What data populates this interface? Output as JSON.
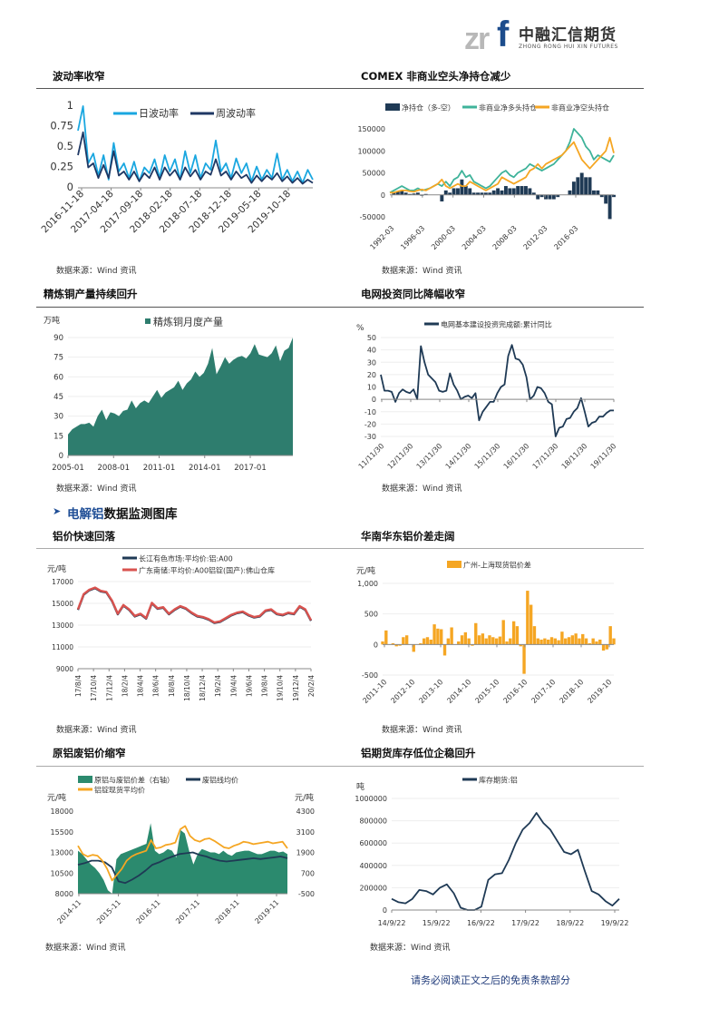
{
  "header": {
    "logo_latin": "zrf",
    "logo_cn": "中融汇信期货",
    "logo_en": "ZHONG RONG HUI XIN FUTURES"
  },
  "section": {
    "title_highlight": "电解铝",
    "title_rest": "数据监测图库",
    "icon": "bullet-arrow-icon"
  },
  "source_label": "数据来源：Wind 资讯",
  "footer": "请务必阅读正文之后的免责条款部分",
  "colors": {
    "navy": "#1f3a55",
    "light_blue": "#1aa7e0",
    "teal": "#2e7d6e",
    "green": "#3fb39a",
    "orange": "#f5a623",
    "red": "#d9534f"
  },
  "chart_data": [
    {
      "id": "c1",
      "title": "波动率收窄",
      "type": "line",
      "ylim": [
        0,
        1
      ],
      "yticks": [
        "0",
        "0.25",
        "0.5",
        "0.75",
        "1"
      ],
      "xticks": [
        "2016-11-18",
        "2017-04-18",
        "2017-09-18",
        "2018-02-18",
        "2018-07-18",
        "2018-12-18",
        "2019-05-18",
        "2019-10-18"
      ],
      "series": [
        {
          "name": "日波动率",
          "color": "#1aa7e0",
          "kind": "line",
          "values": [
            0.7,
            1.0,
            0.3,
            0.42,
            0.15,
            0.4,
            0.1,
            0.55,
            0.2,
            0.3,
            0.12,
            0.32,
            0.08,
            0.25,
            0.18,
            0.35,
            0.12,
            0.4,
            0.2,
            0.35,
            0.1,
            0.45,
            0.18,
            0.4,
            0.12,
            0.3,
            0.22,
            0.58,
            0.2,
            0.3,
            0.12,
            0.36,
            0.18,
            0.3,
            0.08,
            0.26,
            0.1,
            0.22,
            0.12,
            0.42,
            0.1,
            0.22,
            0.08,
            0.2,
            0.06,
            0.22,
            0.1
          ]
        },
        {
          "name": "周波动率",
          "color": "#1f3864",
          "kind": "line",
          "values": [
            0.4,
            0.68,
            0.25,
            0.3,
            0.12,
            0.28,
            0.12,
            0.45,
            0.15,
            0.2,
            0.1,
            0.2,
            0.08,
            0.18,
            0.12,
            0.25,
            0.1,
            0.25,
            0.15,
            0.22,
            0.1,
            0.25,
            0.14,
            0.22,
            0.1,
            0.2,
            0.16,
            0.35,
            0.15,
            0.2,
            0.1,
            0.2,
            0.12,
            0.16,
            0.06,
            0.15,
            0.08,
            0.15,
            0.1,
            0.18,
            0.08,
            0.14,
            0.06,
            0.12,
            0.05,
            0.1,
            0.06
          ]
        }
      ]
    },
    {
      "id": "c2",
      "title": "COMEX 非商业空头净持仓减少",
      "type": "line",
      "ylim": [
        -50000,
        150000
      ],
      "yticks": [
        "-50000",
        "0",
        "50000",
        "100000",
        "150000"
      ],
      "xticks": [
        "1992-03",
        "1996-03",
        "2000-03",
        "2004-03",
        "2008-03",
        "2012-03",
        "2016-03"
      ],
      "series": [
        {
          "name": "净持仓（多-空）",
          "color": "#1f3a55",
          "kind": "bar",
          "values": [
            0,
            5000,
            7000,
            10000,
            5000,
            2000,
            3000,
            5000,
            -2000,
            2000,
            0,
            0,
            0,
            -15000,
            10000,
            5000,
            15000,
            15000,
            35000,
            20000,
            15000,
            5000,
            5000,
            5000,
            5000,
            5000,
            10000,
            15000,
            10000,
            20000,
            15000,
            15000,
            20000,
            20000,
            20000,
            15000,
            5000,
            -10000,
            -5000,
            -10000,
            -10000,
            -10000,
            -5000,
            0,
            0,
            10000,
            30000,
            40000,
            50000,
            40000,
            40000,
            10000,
            10000,
            -5000,
            -20000,
            -55000,
            -5000
          ]
        },
        {
          "name": "非商业净多头持仓",
          "color": "#3fb39a",
          "kind": "line",
          "values": [
            5000,
            10000,
            15000,
            20000,
            15000,
            10000,
            10000,
            15000,
            10000,
            12000,
            15000,
            20000,
            25000,
            20000,
            30000,
            20000,
            35000,
            40000,
            55000,
            40000,
            45000,
            30000,
            25000,
            20000,
            15000,
            20000,
            30000,
            40000,
            50000,
            55000,
            45000,
            40000,
            50000,
            55000,
            60000,
            70000,
            65000,
            60000,
            55000,
            60000,
            65000,
            70000,
            80000,
            90000,
            100000,
            120000,
            150000,
            140000,
            130000,
            110000,
            100000,
            80000,
            90000,
            85000,
            80000,
            75000,
            90000
          ]
        },
        {
          "name": "非商业净空头持仓",
          "color": "#f5a623",
          "kind": "line",
          "values": [
            5000,
            5000,
            8000,
            10000,
            10000,
            8000,
            7000,
            10000,
            12000,
            10000,
            15000,
            20000,
            25000,
            35000,
            20000,
            15000,
            20000,
            25000,
            20000,
            20000,
            30000,
            25000,
            20000,
            15000,
            10000,
            15000,
            20000,
            25000,
            40000,
            35000,
            30000,
            25000,
            30000,
            35000,
            40000,
            55000,
            60000,
            70000,
            60000,
            70000,
            75000,
            80000,
            85000,
            90000,
            100000,
            110000,
            120000,
            100000,
            80000,
            70000,
            60000,
            70000,
            80000,
            90000,
            100000,
            130000,
            95000
          ]
        }
      ]
    },
    {
      "id": "c3",
      "title": "精炼铜产量持续回升",
      "type": "area",
      "unit": "万吨",
      "ylim": [
        0,
        90
      ],
      "yticks": [
        "0",
        "15",
        "30",
        "45",
        "60",
        "75",
        "90"
      ],
      "xticks": [
        "2005-01",
        "2008-01",
        "2011-01",
        "2014-01",
        "2017-01"
      ],
      "series": [
        {
          "name": "精炼铜月度产量",
          "color": "#2e7d6e",
          "kind": "area",
          "values": [
            16,
            20,
            22,
            24,
            24,
            25,
            22,
            30,
            35,
            27,
            33,
            32,
            30,
            34,
            35,
            42,
            36,
            40,
            42,
            40,
            45,
            50,
            44,
            48,
            50,
            52,
            57,
            50,
            55,
            58,
            64,
            60,
            63,
            70,
            82,
            62,
            68,
            75,
            70,
            73,
            75,
            76,
            74,
            78,
            85,
            77,
            76,
            75,
            78,
            84,
            72,
            80,
            82,
            90
          ]
        }
      ]
    },
    {
      "id": "c4",
      "title": "电网投资同比降幅收窄",
      "type": "line",
      "unit": "%",
      "ylim": [
        -30,
        50
      ],
      "yticks": [
        "-30",
        "-20",
        "-10",
        "0",
        "10",
        "20",
        "30",
        "40",
        "50"
      ],
      "xticks": [
        "11/11/30",
        "12/11/30",
        "13/11/30",
        "14/11/30",
        "15/11/30",
        "16/11/30",
        "17/11/30",
        "18/11/30",
        "19/11/30"
      ],
      "series": [
        {
          "name": "电网基本建设投资完成额:累计同比",
          "color": "#1f3a55",
          "kind": "line",
          "values": [
            20,
            7,
            7,
            6,
            -2,
            5,
            8,
            6,
            5,
            8,
            0,
            43,
            30,
            20,
            17,
            14,
            7,
            6,
            7,
            21,
            12,
            7,
            0,
            2,
            3,
            1,
            5,
            -17,
            -10,
            -6,
            -2,
            -2,
            5,
            10,
            12,
            35,
            44,
            33,
            32,
            28,
            18,
            0,
            3,
            10,
            9,
            5,
            -2,
            -4,
            -30,
            -23,
            -22,
            -16,
            -15,
            -10,
            -7,
            1,
            -10,
            -22,
            -19,
            -18,
            -14,
            -14,
            -11,
            -9,
            -9
          ]
        }
      ]
    },
    {
      "id": "c5",
      "title": "铝价快速回落",
      "type": "line",
      "unit": "元/吨",
      "ylim": [
        9000,
        17000
      ],
      "yticks": [
        "9000",
        "11000",
        "13000",
        "15000",
        "17000"
      ],
      "xticks": [
        "17/8/4",
        "17/10/4",
        "17/12/4",
        "18/2/4",
        "18/4/4",
        "18/6/4",
        "18/8/4",
        "18/10/4",
        "18/12/4",
        "19/2/4",
        "19/4/4",
        "19/6/4",
        "19/8/4",
        "19/10/4",
        "19/12/4",
        "20/2/4"
      ],
      "series": [
        {
          "name": "长江有色市场:平均价:铝:A00",
          "color": "#1f3a55",
          "kind": "line",
          "values": [
            14400,
            15800,
            16200,
            16400,
            16100,
            16000,
            15200,
            14000,
            14800,
            14400,
            13800,
            14000,
            13600,
            15000,
            14500,
            14600,
            14000,
            14400,
            14700,
            14500,
            14100,
            13800,
            13700,
            13500,
            13200,
            13300,
            13600,
            13900,
            14100,
            14200,
            13900,
            13700,
            13800,
            14300,
            14400,
            14000,
            13900,
            14100,
            14000,
            14700,
            14400,
            13400
          ]
        },
        {
          "name": "广东南储:平均价:A00铝锭(国产):佛山仓库",
          "color": "#d9534f",
          "kind": "line",
          "values": [
            14450,
            15850,
            16250,
            16450,
            16150,
            16050,
            15250,
            14050,
            14850,
            14450,
            13850,
            14050,
            13650,
            15050,
            14550,
            14650,
            14050,
            14450,
            14750,
            14550,
            14150,
            13850,
            13750,
            13550,
            13250,
            13350,
            13650,
            13950,
            14150,
            14250,
            13950,
            13750,
            13850,
            14350,
            14450,
            14050,
            13950,
            14150,
            14050,
            14750,
            14450,
            13450
          ]
        }
      ]
    },
    {
      "id": "c6",
      "title": "华南华东铝价差走阔",
      "type": "bar",
      "unit": "元/吨",
      "ylim": [
        -500,
        1000
      ],
      "yticks": [
        "-500",
        "0",
        "500",
        "1,000"
      ],
      "xticks": [
        "2011-10",
        "2012-10",
        "2013-10",
        "2014-10",
        "2015-10",
        "2016-10",
        "2017-10",
        "2018-10",
        "2019-10"
      ],
      "series": [
        {
          "name": "广州-上海现货铝价差",
          "color": "#f5a623",
          "kind": "bar",
          "values": [
            50,
            230,
            0,
            20,
            -30,
            -20,
            120,
            150,
            0,
            -120,
            0,
            20,
            100,
            120,
            80,
            330,
            260,
            250,
            -180,
            100,
            280,
            0,
            50,
            150,
            200,
            100,
            -20,
            350,
            150,
            180,
            100,
            150,
            120,
            100,
            130,
            400,
            50,
            100,
            380,
            300,
            -30,
            -480,
            880,
            650,
            300,
            100,
            80,
            100,
            80,
            120,
            100,
            70,
            210,
            100,
            120,
            150,
            180,
            100,
            170,
            100,
            20,
            100,
            50,
            80,
            -100,
            -80,
            300,
            100
          ]
        }
      ]
    },
    {
      "id": "c7",
      "title": "原铝废铝价缩窄",
      "type": "line",
      "unit": "元/吨",
      "unit_right": "元/吨",
      "ylim": [
        8000,
        18000
      ],
      "yticks": [
        "8000",
        "10500",
        "13000",
        "15500",
        "18000"
      ],
      "ylim_right": [
        -500,
        4300
      ],
      "yticks_right": [
        "-500",
        "700",
        "1900",
        "3100",
        "4300"
      ],
      "xticks": [
        "2014-11",
        "2015-11",
        "2016-11",
        "2017-11",
        "2018-11",
        "2019-11"
      ],
      "series": [
        {
          "name": "原铝与废铝价差（右轴）",
          "color": "#2b8a6e",
          "kind": "area",
          "axis": "right",
          "values": [
            2000,
            1800,
            1500,
            1200,
            1000,
            700,
            300,
            -300,
            -500,
            1500,
            1800,
            1900,
            2000,
            2100,
            2200,
            2300,
            2400,
            3600,
            2000,
            1800,
            1900,
            2100,
            2000,
            1600,
            3200,
            3000,
            2000,
            1200,
            1800,
            2100,
            2000,
            1900,
            1900,
            1800,
            2000,
            1800,
            1700,
            1900,
            1950,
            2000,
            2000,
            1900,
            1800,
            1800,
            1900,
            2000,
            2000,
            1900,
            1950,
            1800
          ]
        },
        {
          "name": "废铝线均价",
          "color": "#1f3a55",
          "kind": "line",
          "values": [
            11500,
            11700,
            12000,
            12000,
            11800,
            11200,
            9500,
            9300,
            9700,
            10200,
            10800,
            11500,
            11800,
            12200,
            12500,
            12800,
            12900,
            13000,
            12700,
            12500,
            12200,
            12000,
            11900,
            12000,
            12100,
            12200,
            12300,
            12200,
            12300,
            12400,
            12500,
            12300
          ]
        },
        {
          "name": "铝锭现货平均价",
          "color": "#f5a623",
          "kind": "line",
          "values": [
            13800,
            12800,
            12500,
            12700,
            12600,
            12000,
            11000,
            9600,
            10300,
            11000,
            12000,
            12500,
            12800,
            13000,
            13200,
            14500,
            13500,
            13600,
            13900,
            14000,
            14200,
            15800,
            16200,
            15000,
            14500,
            14300,
            14600,
            14700,
            14400,
            14000,
            13600,
            13500,
            13800,
            14000,
            14300,
            14200,
            14000,
            14100,
            14200,
            14300,
            14100,
            14200,
            14300,
            13500
          ]
        }
      ]
    },
    {
      "id": "c8",
      "title": "铝期货库存低位企稳回升",
      "type": "line",
      "unit": "吨",
      "ylim": [
        0,
        1000000
      ],
      "yticks": [
        "0",
        "200000",
        "400000",
        "600000",
        "800000",
        "1000000"
      ],
      "xticks": [
        "14/9/22",
        "15/9/22",
        "16/9/22",
        "17/9/22",
        "18/9/22",
        "19/9/22"
      ],
      "series": [
        {
          "name": "库存期货:铝",
          "color": "#1f3a55",
          "kind": "line",
          "values": [
            100000,
            70000,
            60000,
            100000,
            180000,
            170000,
            140000,
            200000,
            230000,
            150000,
            20000,
            0,
            0,
            30000,
            270000,
            320000,
            330000,
            450000,
            600000,
            720000,
            780000,
            870000,
            780000,
            720000,
            620000,
            520000,
            500000,
            540000,
            350000,
            170000,
            140000,
            80000,
            40000,
            100000
          ]
        }
      ]
    }
  ]
}
